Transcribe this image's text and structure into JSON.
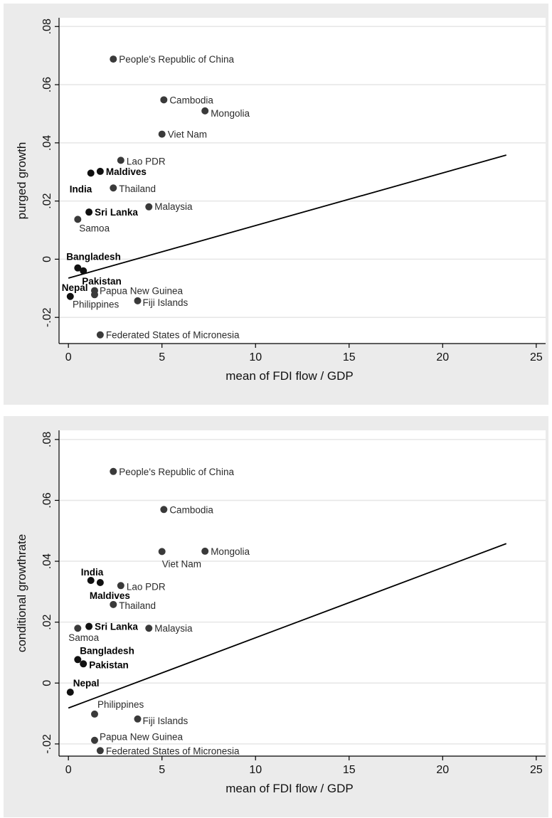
{
  "chart_data": [
    {
      "type": "scatter",
      "xlabel": "mean of FDI flow / GDP",
      "ylabel": "purged growth",
      "xlim": [
        -0.5,
        25.5
      ],
      "ylim": [
        -0.029,
        0.083
      ],
      "xticks": [
        "0",
        "5",
        "10",
        "15",
        "20",
        "25"
      ],
      "yticks": [
        "-.02",
        "0",
        ".02",
        ".04",
        ".06",
        ".08"
      ],
      "grid": true,
      "points": [
        {
          "label": "People's Republic of China",
          "x": 2.4,
          "y": 0.0688,
          "bold": false
        },
        {
          "label": "Cambodia",
          "x": 5.1,
          "y": 0.0548,
          "bold": false
        },
        {
          "label": "Mongolia",
          "x": 7.3,
          "y": 0.051,
          "bold": false
        },
        {
          "label": "Viet Nam",
          "x": 5.0,
          "y": 0.043,
          "bold": false
        },
        {
          "label": "Lao PDR",
          "x": 2.8,
          "y": 0.034,
          "bold": false
        },
        {
          "label": "Maldives",
          "x": 1.7,
          "y": 0.0302,
          "bold": true
        },
        {
          "label": "India",
          "x": 1.2,
          "y": 0.0296,
          "bold": true
        },
        {
          "label": "Thailand",
          "x": 2.4,
          "y": 0.0245,
          "bold": false
        },
        {
          "label": "Malaysia",
          "x": 4.3,
          "y": 0.018,
          "bold": false
        },
        {
          "label": "Sri Lanka",
          "x": 1.1,
          "y": 0.0162,
          "bold": true
        },
        {
          "label": "Samoa",
          "x": 0.5,
          "y": 0.0137,
          "bold": false
        },
        {
          "label": "Bangladesh",
          "x": 0.5,
          "y": -0.003,
          "bold": true
        },
        {
          "label": "Pakistan",
          "x": 0.8,
          "y": -0.004,
          "bold": true
        },
        {
          "label": "Papua New Guinea",
          "x": 1.4,
          "y": -0.0108,
          "bold": false
        },
        {
          "label": "Philippines",
          "x": 1.4,
          "y": -0.0122,
          "bold": false
        },
        {
          "label": "Nepal",
          "x": 0.1,
          "y": -0.0128,
          "bold": true
        },
        {
          "label": "Fiji Islands",
          "x": 3.7,
          "y": -0.0143,
          "bold": false
        },
        {
          "label": "Federated States of Micronesia",
          "x": 1.7,
          "y": -0.026,
          "bold": false
        }
      ],
      "fit_line": {
        "x": [
          0,
          23.4
        ],
        "y": [
          -0.0065,
          0.0358
        ]
      }
    },
    {
      "type": "scatter",
      "xlabel": "mean of FDI flow / GDP",
      "ylabel": "conditional growthrate",
      "xlim": [
        -0.5,
        25.5
      ],
      "ylim": [
        -0.024,
        0.083
      ],
      "xticks": [
        "0",
        "5",
        "10",
        "15",
        "20",
        "25"
      ],
      "yticks": [
        "-.02",
        "0",
        ".02",
        ".04",
        ".06",
        ".08"
      ],
      "grid": true,
      "points": [
        {
          "label": "People's Republic of China",
          "x": 2.4,
          "y": 0.0695,
          "bold": false
        },
        {
          "label": "Cambodia",
          "x": 5.1,
          "y": 0.057,
          "bold": false
        },
        {
          "label": "Mongolia",
          "x": 7.3,
          "y": 0.0433,
          "bold": false
        },
        {
          "label": "Viet Nam",
          "x": 5.0,
          "y": 0.0432,
          "bold": false
        },
        {
          "label": "India",
          "x": 1.2,
          "y": 0.0337,
          "bold": true
        },
        {
          "label": "Maldives",
          "x": 1.7,
          "y": 0.033,
          "bold": true
        },
        {
          "label": "Lao PDR",
          "x": 2.8,
          "y": 0.032,
          "bold": false
        },
        {
          "label": "Thailand",
          "x": 2.4,
          "y": 0.0258,
          "bold": false
        },
        {
          "label": "Sri Lanka",
          "x": 1.1,
          "y": 0.0186,
          "bold": true
        },
        {
          "label": "Malaysia",
          "x": 4.3,
          "y": 0.018,
          "bold": false
        },
        {
          "label": "Samoa",
          "x": 0.5,
          "y": 0.018,
          "bold": false
        },
        {
          "label": "Bangladesh",
          "x": 0.5,
          "y": 0.0077,
          "bold": true
        },
        {
          "label": "Pakistan",
          "x": 0.8,
          "y": 0.0063,
          "bold": true
        },
        {
          "label": "Nepal",
          "x": 0.1,
          "y": -0.003,
          "bold": true
        },
        {
          "label": "Philippines",
          "x": 1.4,
          "y": -0.0102,
          "bold": false
        },
        {
          "label": "Fiji Islands",
          "x": 3.7,
          "y": -0.0118,
          "bold": false
        },
        {
          "label": "Papua New Guinea",
          "x": 1.4,
          "y": -0.0188,
          "bold": false
        },
        {
          "label": "Federated States of Micronesia",
          "x": 1.7,
          "y": -0.0222,
          "bold": false
        }
      ],
      "fit_line": {
        "x": [
          0,
          23.4
        ],
        "y": [
          -0.0082,
          0.0458
        ]
      }
    }
  ]
}
